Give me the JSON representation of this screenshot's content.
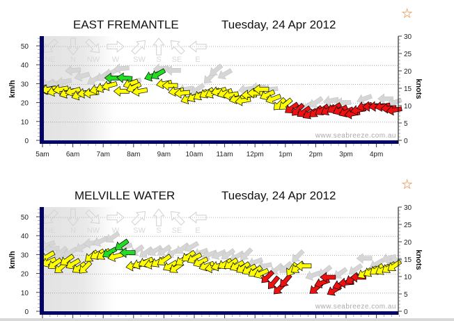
{
  "colors": {
    "low": "#ee1111",
    "mid": "#ffff00",
    "high": "#22dd22",
    "gust": "#d6d6d6",
    "axis": "#000066",
    "star": "#f0a060"
  },
  "thresholds_kmh": [
    19,
    31
  ],
  "chart_data": [
    {
      "type": "scatter",
      "title": "EAST FREMANTLE",
      "date": "Tuesday, 24 Apr 2012",
      "ylabel": "km/h",
      "y2label": "knots",
      "ylim": [
        0,
        55
      ],
      "y2lim": [
        0,
        30
      ],
      "yticks": [
        "0",
        "10",
        "20",
        "30",
        "40",
        "50"
      ],
      "y2ticks": [
        "0",
        "5",
        "10",
        "15",
        "20",
        "25",
        "30"
      ],
      "xticks": [
        "5am",
        "6am",
        "7am",
        "8am",
        "9am",
        "10am",
        "11am",
        "12pm",
        "1pm",
        "2pm",
        "3pm",
        "4pm"
      ],
      "show_xticks": true,
      "compass": [
        "NE",
        "N",
        "NW",
        "W",
        "SW",
        "S",
        "SE",
        "E"
      ],
      "watermark": "www.seabreeze.com.au",
      "grid": true,
      "series": [
        {
          "name": "average",
          "points": [
            [
              5.0,
              27,
              80
            ],
            [
              5.2,
              27,
              80
            ],
            [
              5.4,
              26,
              75
            ],
            [
              5.6,
              27,
              80
            ],
            [
              5.8,
              25,
              70
            ],
            [
              6.0,
              26,
              75
            ],
            [
              6.2,
              24,
              70
            ],
            [
              6.4,
              25,
              80
            ],
            [
              6.6,
              25,
              85
            ],
            [
              6.8,
              27,
              75
            ],
            [
              7.0,
              28,
              70
            ],
            [
              7.2,
              29,
              75
            ],
            [
              7.3,
              33,
              90
            ],
            [
              7.6,
              26,
              90
            ],
            [
              7.7,
              33,
              95
            ],
            [
              7.9,
              30,
              70
            ],
            [
              8.0,
              28,
              65
            ],
            [
              8.2,
              26,
              80
            ],
            [
              8.6,
              34,
              70
            ],
            [
              8.8,
              35,
              60
            ],
            [
              9.0,
              30,
              80
            ],
            [
              9.2,
              29,
              90
            ],
            [
              9.4,
              26,
              80
            ],
            [
              9.6,
              25,
              85
            ],
            [
              9.8,
              22,
              70
            ],
            [
              10.0,
              23,
              65
            ],
            [
              10.2,
              24,
              60
            ],
            [
              10.4,
              25,
              60
            ],
            [
              10.6,
              25,
              65
            ],
            [
              10.8,
              26,
              75
            ],
            [
              11.0,
              25,
              70
            ],
            [
              11.2,
              24,
              80
            ],
            [
              11.4,
              22,
              75
            ],
            [
              11.6,
              21,
              80
            ],
            [
              11.8,
              24,
              90
            ],
            [
              12.0,
              25,
              90
            ],
            [
              12.2,
              27,
              90
            ],
            [
              12.4,
              24,
              65
            ],
            [
              12.6,
              22,
              70
            ],
            [
              12.8,
              19,
              45
            ],
            [
              13.0,
              19,
              50
            ],
            [
              13.2,
              17,
              55
            ],
            [
              13.4,
              16,
              45
            ],
            [
              13.6,
              15,
              55
            ],
            [
              13.8,
              14,
              60
            ],
            [
              14.0,
              15,
              50
            ],
            [
              14.2,
              16,
              55
            ],
            [
              14.4,
              16,
              60
            ],
            [
              14.6,
              17,
              60
            ],
            [
              14.8,
              16,
              65
            ],
            [
              15.0,
              15,
              65
            ],
            [
              15.2,
              14,
              80
            ],
            [
              15.4,
              16,
              80
            ],
            [
              15.6,
              18,
              75
            ],
            [
              15.8,
              18,
              85
            ],
            [
              16.0,
              18,
              85
            ],
            [
              16.2,
              18,
              80
            ],
            [
              16.4,
              17,
              85
            ],
            [
              16.6,
              16,
              80
            ]
          ]
        },
        {
          "name": "gust",
          "points": [
            [
              5.1,
              30,
              75
            ],
            [
              5.4,
              30,
              85
            ],
            [
              5.7,
              31,
              80
            ],
            [
              6.0,
              37,
              85
            ],
            [
              6.3,
              34,
              75
            ],
            [
              6.7,
              32,
              60
            ],
            [
              7.0,
              34,
              55
            ],
            [
              7.3,
              36,
              60
            ],
            [
              7.6,
              38,
              85
            ],
            [
              8.0,
              31,
              75
            ],
            [
              8.9,
              38,
              85
            ],
            [
              9.3,
              37,
              90
            ],
            [
              9.7,
              27,
              80
            ],
            [
              10.1,
              27,
              55
            ],
            [
              10.5,
              33,
              45
            ],
            [
              10.7,
              37,
              50
            ],
            [
              11.0,
              35,
              60
            ],
            [
              11.7,
              27,
              80
            ],
            [
              12.1,
              28,
              85
            ],
            [
              12.5,
              27,
              85
            ],
            [
              13.7,
              18,
              60
            ],
            [
              14.0,
              20,
              55
            ],
            [
              14.5,
              21,
              80
            ],
            [
              14.9,
              20,
              90
            ],
            [
              15.6,
              22,
              70
            ],
            [
              16.3,
              22,
              90
            ],
            [
              16.6,
              20,
              70
            ]
          ]
        }
      ]
    },
    {
      "type": "scatter",
      "title": "MELVILLE WATER",
      "date": "Tuesday, 24 Apr 2012",
      "ylabel": "km/h",
      "y2label": "knots",
      "ylim": [
        0,
        55
      ],
      "y2lim": [
        0,
        30
      ],
      "yticks": [
        "0",
        "10",
        "20",
        "30",
        "40",
        "50"
      ],
      "y2ticks": [
        "0",
        "5",
        "10",
        "15",
        "20",
        "25",
        "30"
      ],
      "xticks": [],
      "show_xticks": false,
      "compass": [
        "NE",
        "N",
        "NW",
        "W",
        "SW",
        "S",
        "SE",
        "E"
      ],
      "watermark": "www.seabreeze.com.au",
      "grid": true,
      "series": [
        {
          "name": "average",
          "points": [
            [
              5.0,
              29,
              60
            ],
            [
              5.2,
              26,
              65
            ],
            [
              5.4,
              25,
              55
            ],
            [
              5.6,
              23,
              50
            ],
            [
              5.8,
              27,
              55
            ],
            [
              6.0,
              25,
              60
            ],
            [
              6.2,
              23,
              55
            ],
            [
              6.4,
              23,
              45
            ],
            [
              6.6,
              29,
              50
            ],
            [
              6.8,
              30,
              60
            ],
            [
              7.0,
              30,
              55
            ],
            [
              7.2,
              31,
              60
            ],
            [
              7.4,
              29,
              75
            ],
            [
              7.6,
              35,
              55
            ],
            [
              7.8,
              31,
              90
            ],
            [
              8.0,
              24,
              80
            ],
            [
              8.2,
              25,
              70
            ],
            [
              8.4,
              26,
              65
            ],
            [
              8.6,
              25,
              75
            ],
            [
              8.8,
              26,
              60
            ],
            [
              9.0,
              27,
              55
            ],
            [
              9.2,
              24,
              60
            ],
            [
              9.4,
              23,
              55
            ],
            [
              9.6,
              27,
              55
            ],
            [
              9.8,
              29,
              55
            ],
            [
              10.0,
              28,
              60
            ],
            [
              10.2,
              26,
              65
            ],
            [
              10.4,
              24,
              70
            ],
            [
              10.6,
              23,
              80
            ],
            [
              10.8,
              24,
              75
            ],
            [
              11.0,
              25,
              60
            ],
            [
              11.2,
              25,
              55
            ],
            [
              11.4,
              24,
              60
            ],
            [
              11.6,
              23,
              55
            ],
            [
              11.8,
              22,
              60
            ],
            [
              12.0,
              21,
              55
            ],
            [
              12.2,
              20,
              65
            ],
            [
              12.4,
              18,
              45
            ],
            [
              12.6,
              15,
              40
            ],
            [
              12.8,
              12,
              45
            ],
            [
              13.0,
              16,
              40
            ],
            [
              13.2,
              22,
              35
            ],
            [
              13.4,
              23,
              55
            ],
            [
              13.6,
              24,
              90
            ],
            [
              14.0,
              12,
              50
            ],
            [
              14.2,
              15,
              70
            ],
            [
              14.4,
              18,
              90
            ],
            [
              14.6,
              11,
              60
            ],
            [
              14.8,
              14,
              70
            ],
            [
              15.0,
              15,
              85
            ],
            [
              15.2,
              17,
              60
            ],
            [
              15.4,
              18,
              90
            ],
            [
              15.6,
              20,
              60
            ],
            [
              15.8,
              21,
              60
            ],
            [
              16.0,
              22,
              55
            ],
            [
              16.2,
              22,
              60
            ],
            [
              16.4,
              23,
              55
            ],
            [
              16.6,
              24,
              55
            ]
          ]
        },
        {
          "name": "gust",
          "points": [
            [
              5.0,
              35,
              70
            ],
            [
              5.3,
              33,
              85
            ],
            [
              5.6,
              31,
              50
            ],
            [
              5.9,
              31,
              60
            ],
            [
              6.3,
              34,
              60
            ],
            [
              6.6,
              36,
              85
            ],
            [
              6.9,
              37,
              65
            ],
            [
              7.3,
              39,
              55
            ],
            [
              7.7,
              34,
              75
            ],
            [
              8.1,
              32,
              55
            ],
            [
              8.4,
              31,
              55
            ],
            [
              8.7,
              32,
              60
            ],
            [
              9.0,
              32,
              55
            ],
            [
              9.3,
              31,
              65
            ],
            [
              9.6,
              33,
              55
            ],
            [
              9.9,
              34,
              60
            ],
            [
              10.2,
              31,
              70
            ],
            [
              10.5,
              30,
              70
            ],
            [
              10.8,
              30,
              65
            ],
            [
              11.1,
              30,
              55
            ],
            [
              11.4,
              29,
              60
            ],
            [
              11.7,
              30,
              45
            ],
            [
              12.0,
              26,
              70
            ],
            [
              12.3,
              24,
              80
            ],
            [
              12.7,
              22,
              50
            ],
            [
              13.0,
              23,
              50
            ],
            [
              13.4,
              29,
              45
            ],
            [
              13.9,
              19,
              70
            ],
            [
              14.3,
              21,
              50
            ],
            [
              14.8,
              20,
              55
            ],
            [
              15.3,
              22,
              55
            ],
            [
              15.6,
              28,
              90
            ],
            [
              16.0,
              25,
              60
            ],
            [
              16.4,
              28,
              75
            ],
            [
              16.6,
              26,
              70
            ]
          ]
        }
      ]
    }
  ]
}
